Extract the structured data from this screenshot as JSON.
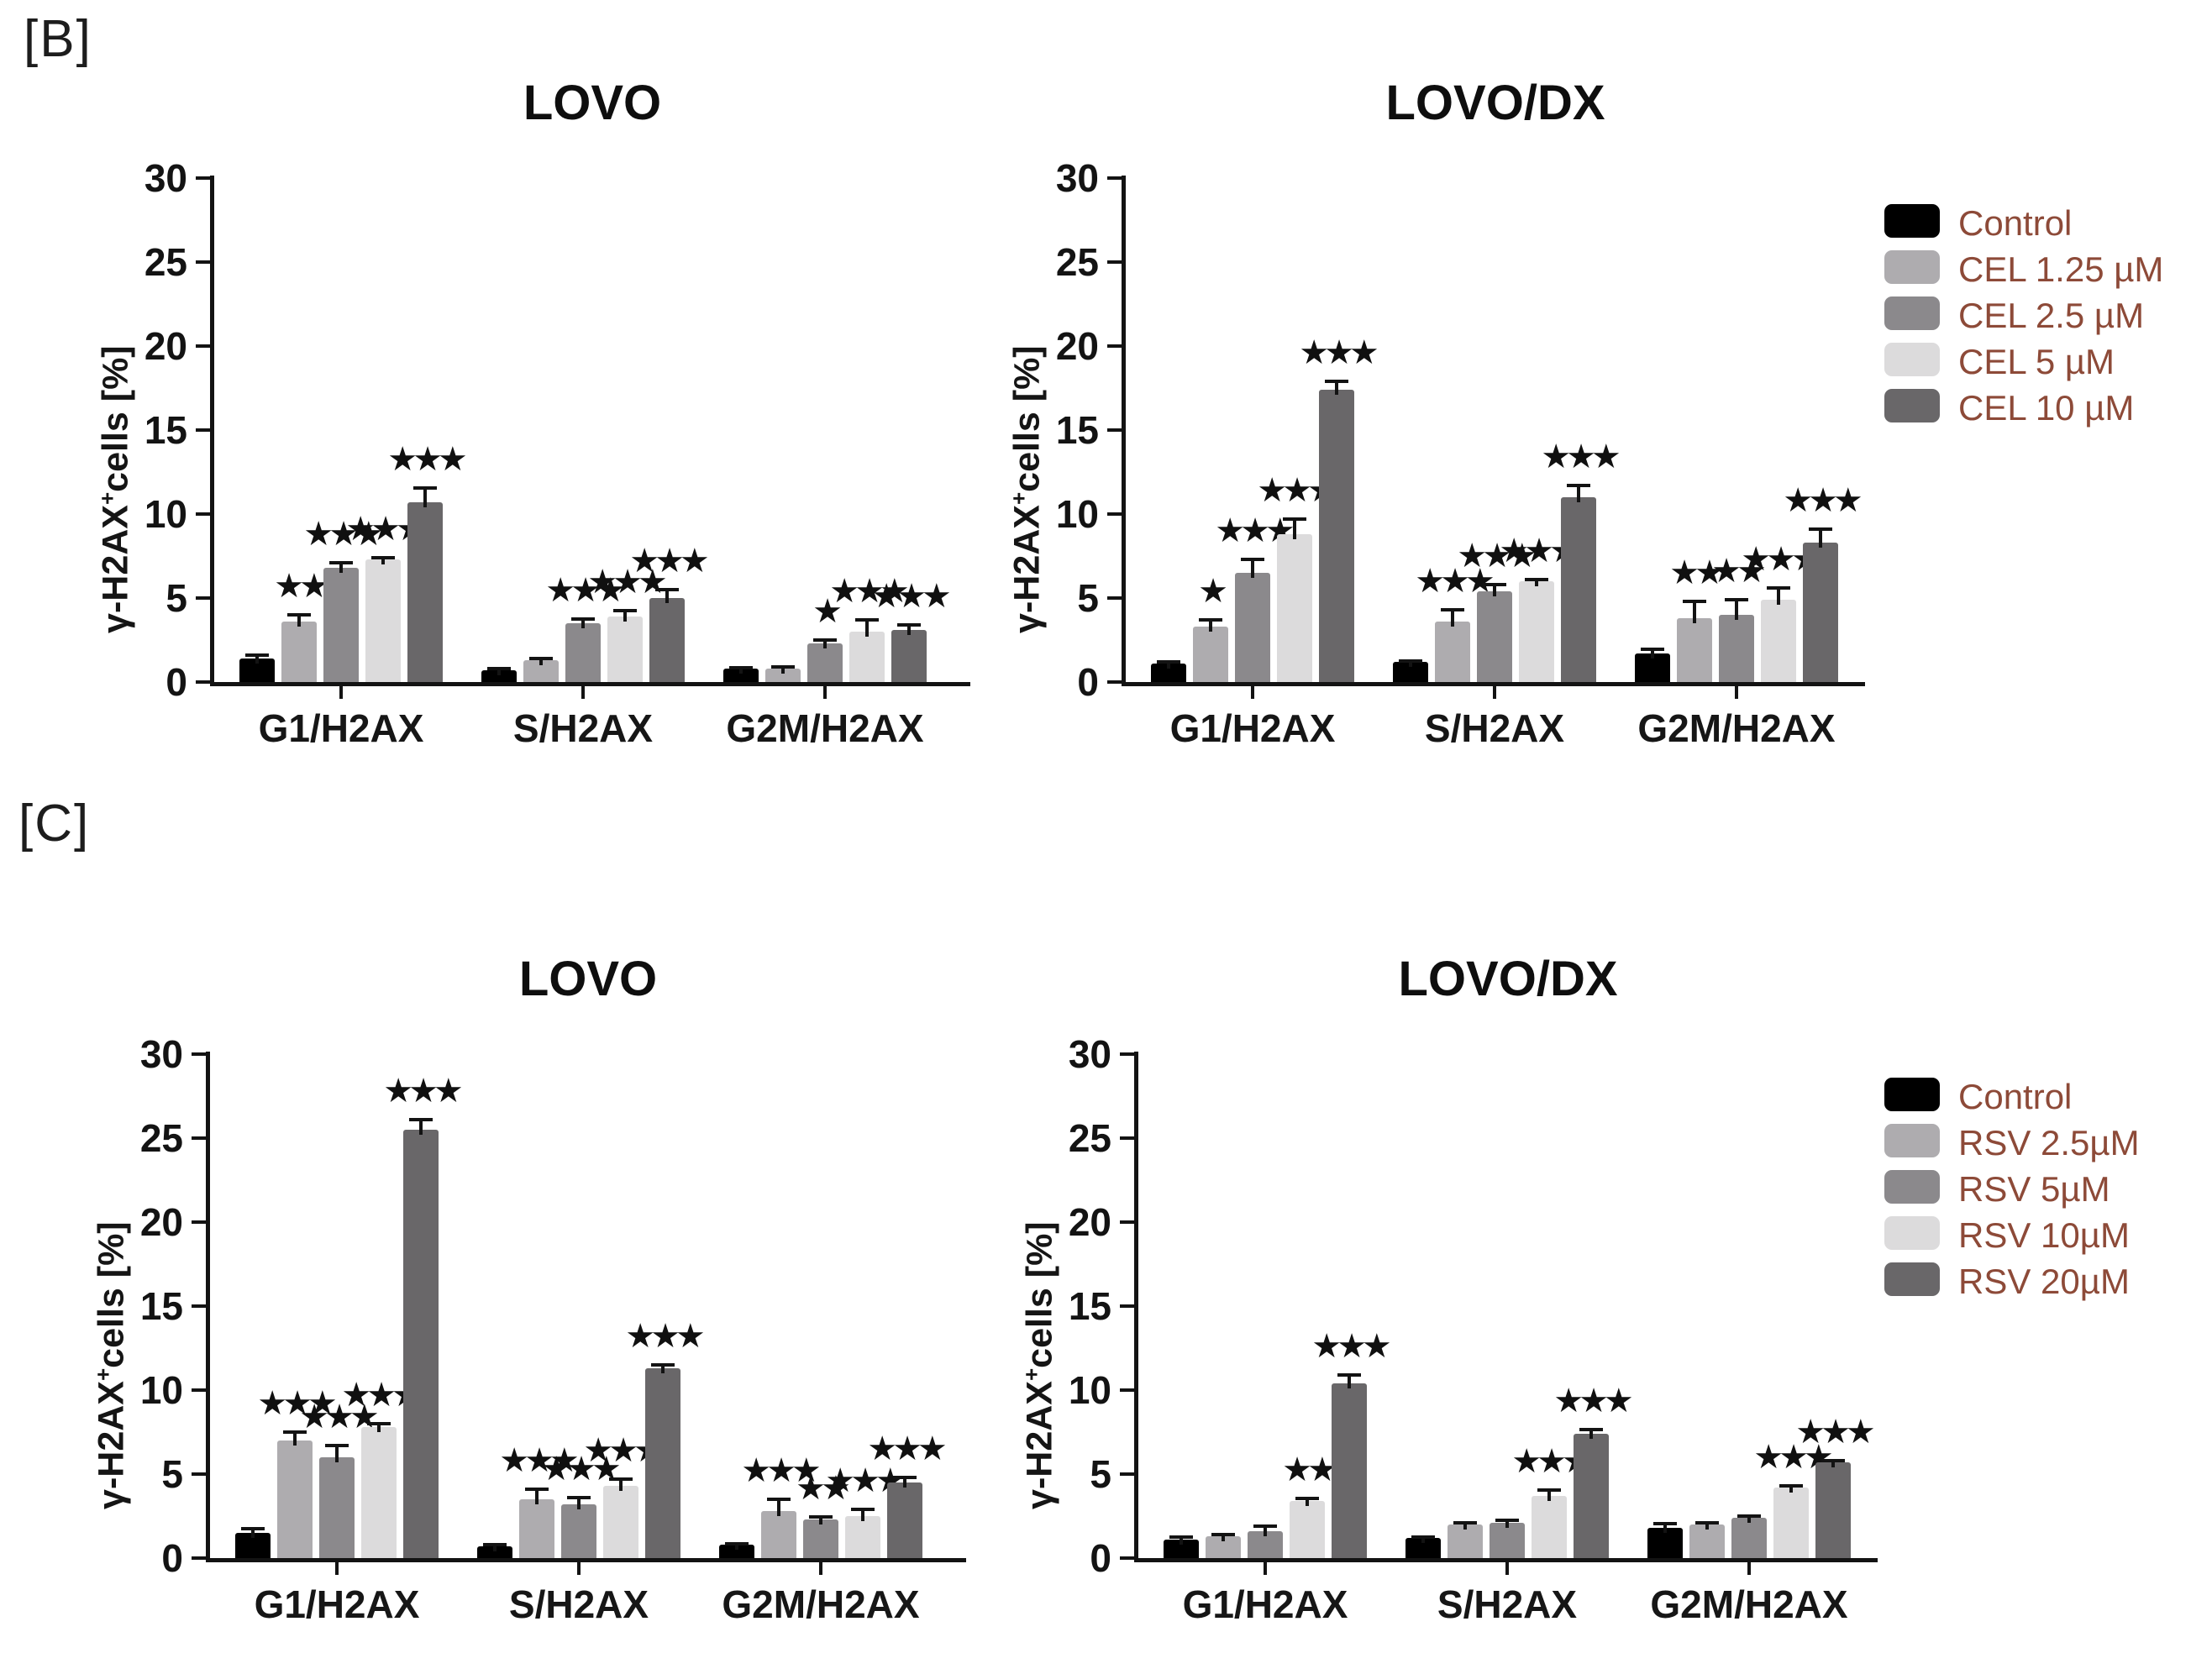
{
  "figure": {
    "panel_b_label": "[B]",
    "panel_c_label": "[C]"
  },
  "palette": [
    "#000000",
    "#aeacaf",
    "#8b898c",
    "#dcdbdc",
    "#696769"
  ],
  "colors": {
    "axis": "#131313",
    "legend_text": "#8d4a38",
    "stars": "#101010",
    "background": "#ffffff"
  },
  "legends": [
    {
      "panel": "B",
      "items": [
        {
          "label": "Control",
          "color": "#000000"
        },
        {
          "label": "CEL 1.25 µM",
          "color": "#aeacaf"
        },
        {
          "label": "CEL 2.5 µM",
          "color": "#8b898c"
        },
        {
          "label": "CEL 5 µM",
          "color": "#dcdbdc"
        },
        {
          "label": "CEL 10 µM",
          "color": "#696769"
        }
      ]
    },
    {
      "panel": "C",
      "items": [
        {
          "label": "Control",
          "color": "#000000"
        },
        {
          "label": "RSV 2.5µM",
          "color": "#aeacaf"
        },
        {
          "label": "RSV 5µM",
          "color": "#8b898c"
        },
        {
          "label": "RSV 10µM",
          "color": "#dcdbdc"
        },
        {
          "label": "RSV 20µM",
          "color": "#696769"
        }
      ]
    }
  ],
  "chart_data": [
    {
      "panel": "B",
      "type": "bar",
      "title": "LOVO",
      "ylabel": {
        "text": "γ-H2AX+cells [%]",
        "base": "γ-H2AX",
        "sup": "+",
        "rest": "cells [%]"
      },
      "ylim": [
        0,
        30
      ],
      "yticks": [
        0,
        5,
        10,
        15,
        20,
        25,
        30
      ],
      "categories": [
        "G1/H2AX",
        "S/H2AX",
        "G2M/H2AX"
      ],
      "series": [
        {
          "name": "Control",
          "values": [
            1.4,
            0.7,
            0.8
          ],
          "errors": [
            0.2,
            0.08,
            0.06
          ],
          "sig": [
            "",
            "",
            ""
          ]
        },
        {
          "name": "CEL 1.25 µM",
          "values": [
            3.6,
            1.3,
            0.8
          ],
          "errors": [
            0.4,
            0.1,
            0.1
          ],
          "sig": [
            "**",
            "",
            ""
          ]
        },
        {
          "name": "CEL 2.5 µM",
          "values": [
            6.8,
            3.5,
            2.3
          ],
          "errors": [
            0.3,
            0.25,
            0.2
          ],
          "sig": [
            "***",
            "***",
            "*"
          ]
        },
        {
          "name": "CEL 5 µM",
          "values": [
            7.3,
            3.9,
            3.0
          ],
          "errors": [
            0.12,
            0.35,
            0.7
          ],
          "sig": [
            "***",
            "***",
            "***"
          ]
        },
        {
          "name": "CEL 10 µM",
          "values": [
            10.7,
            5.0,
            3.1
          ],
          "errors": [
            0.85,
            0.5,
            0.3
          ],
          "sig": [
            "***",
            "***",
            "***"
          ]
        }
      ]
    },
    {
      "panel": "B",
      "type": "bar",
      "title": "LOVO/DX",
      "ylabel": {
        "text": "γ-H2AX+cells [%]",
        "base": "γ-H2AX",
        "sup": "+",
        "rest": "cells [%]"
      },
      "ylim": [
        0,
        30
      ],
      "yticks": [
        0,
        5,
        10,
        15,
        20,
        25,
        30
      ],
      "categories": [
        "G1/H2AX",
        "S/H2AX",
        "G2M/H2AX"
      ],
      "series": [
        {
          "name": "Control",
          "values": [
            1.1,
            1.2,
            1.7
          ],
          "errors": [
            0.12,
            0.06,
            0.25
          ],
          "sig": [
            "",
            "",
            ""
          ]
        },
        {
          "name": "CEL 1.25 µM",
          "values": [
            3.3,
            3.6,
            3.8
          ],
          "errors": [
            0.4,
            0.7,
            1.0
          ],
          "sig": [
            "*",
            "***",
            "**"
          ]
        },
        {
          "name": "CEL 2.5 µM",
          "values": [
            6.5,
            5.4,
            4.0
          ],
          "errors": [
            0.8,
            0.4,
            0.9
          ],
          "sig": [
            "***",
            "***",
            "**"
          ]
        },
        {
          "name": "CEL 5 µM",
          "values": [
            8.8,
            6.0,
            4.9
          ],
          "errors": [
            0.9,
            0.12,
            0.7
          ],
          "sig": [
            "***",
            "***",
            "***"
          ]
        },
        {
          "name": "CEL 10 µM",
          "values": [
            17.4,
            11.0,
            8.3
          ],
          "errors": [
            0.5,
            0.7,
            0.8
          ],
          "sig": [
            "***",
            "***",
            "***"
          ]
        }
      ]
    },
    {
      "panel": "C",
      "type": "bar",
      "title": "LOVO",
      "ylabel": {
        "text": "γ-H2AX+cells [%]",
        "base": "γ-H2AX",
        "sup": "+",
        "rest": "cells [%]"
      },
      "ylim": [
        0,
        30
      ],
      "yticks": [
        0,
        5,
        10,
        15,
        20,
        25,
        30
      ],
      "categories": [
        "G1/H2AX",
        "S/H2AX",
        "G2M/H2AX"
      ],
      "series": [
        {
          "name": "Control",
          "values": [
            1.5,
            0.7,
            0.8
          ],
          "errors": [
            0.25,
            0.1,
            0.06
          ],
          "sig": [
            "",
            "",
            ""
          ]
        },
        {
          "name": "RSV 2.5µM",
          "values": [
            7.0,
            3.5,
            2.8
          ],
          "errors": [
            0.5,
            0.6,
            0.7
          ],
          "sig": [
            "***",
            "***",
            "***"
          ]
        },
        {
          "name": "RSV 5µM",
          "values": [
            6.0,
            3.2,
            2.3
          ],
          "errors": [
            0.7,
            0.4,
            0.15
          ],
          "sig": [
            "***",
            "***",
            "**"
          ]
        },
        {
          "name": "RSV 10µM",
          "values": [
            7.8,
            4.3,
            2.5
          ],
          "errors": [
            0.2,
            0.4,
            0.4
          ],
          "sig": [
            "***",
            "***",
            "***"
          ]
        },
        {
          "name": "RSV 20µM",
          "values": [
            25.5,
            11.3,
            4.5
          ],
          "errors": [
            0.6,
            0.2,
            0.3
          ],
          "sig": [
            "***",
            "***",
            "***"
          ]
        }
      ]
    },
    {
      "panel": "C",
      "type": "bar",
      "title": "LOVO/DX",
      "ylabel": {
        "text": "γ-H2AX+cells [%]",
        "base": "γ-H2AX",
        "sup": "+",
        "rest": "cells [%]"
      },
      "ylim": [
        0,
        30
      ],
      "yticks": [
        0,
        5,
        10,
        15,
        20,
        25,
        30
      ],
      "categories": [
        "G1/H2AX",
        "S/H2AX",
        "G2M/H2AX"
      ],
      "series": [
        {
          "name": "Control",
          "values": [
            1.1,
            1.2,
            1.8
          ],
          "errors": [
            0.15,
            0.06,
            0.25
          ],
          "sig": [
            "",
            "",
            ""
          ]
        },
        {
          "name": "RSV 2.5µM",
          "values": [
            1.3,
            2.0,
            2.0
          ],
          "errors": [
            0.1,
            0.08,
            0.08
          ],
          "sig": [
            "",
            "",
            ""
          ]
        },
        {
          "name": "RSV 5µM",
          "values": [
            1.6,
            2.1,
            2.4
          ],
          "errors": [
            0.3,
            0.15,
            0.12
          ],
          "sig": [
            "",
            "",
            ""
          ]
        },
        {
          "name": "RSV 10µM",
          "values": [
            3.4,
            3.7,
            4.2
          ],
          "errors": [
            0.15,
            0.35,
            0.1
          ],
          "sig": [
            "**",
            "***",
            "***"
          ]
        },
        {
          "name": "RSV 20µM",
          "values": [
            10.4,
            7.4,
            5.7
          ],
          "errors": [
            0.5,
            0.25,
            0.12
          ],
          "sig": [
            "***",
            "***",
            "***"
          ]
        }
      ]
    }
  ]
}
